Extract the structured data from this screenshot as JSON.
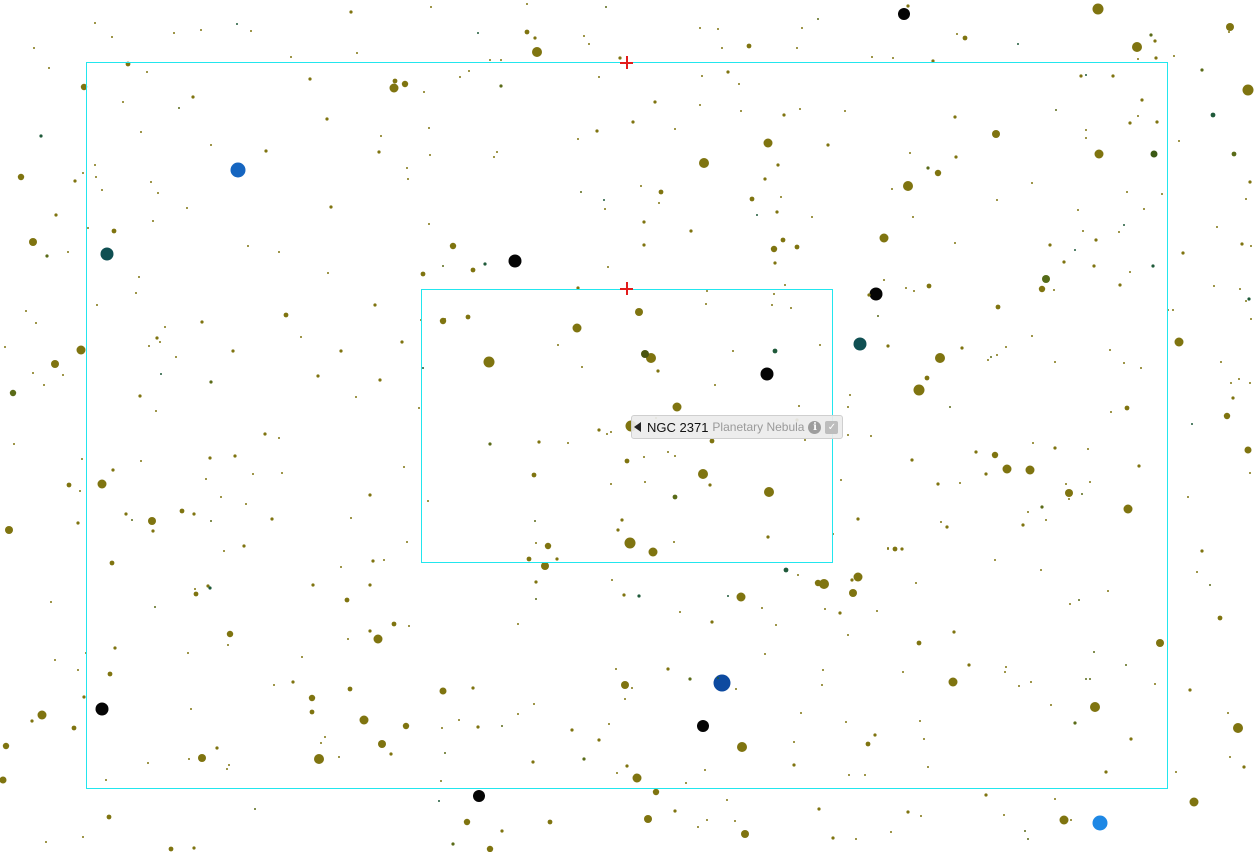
{
  "sky_view": {
    "target": {
      "name": "NGC 2371",
      "type": "Planetary Nebula",
      "info_icon": "info-icon",
      "check_icon": "check-icon",
      "marker_icon": "triangle-marker-icon"
    },
    "fov_frames": [
      "outer-field-of-view",
      "inner-field-of-view"
    ],
    "colors": {
      "fov_frame": "#22e6ee",
      "crosshair": "#e21b1b",
      "star_default": "#7f7410",
      "star_black": "#050505",
      "star_blue": "#1565c0",
      "star_teal": "#0f4f52"
    }
  }
}
